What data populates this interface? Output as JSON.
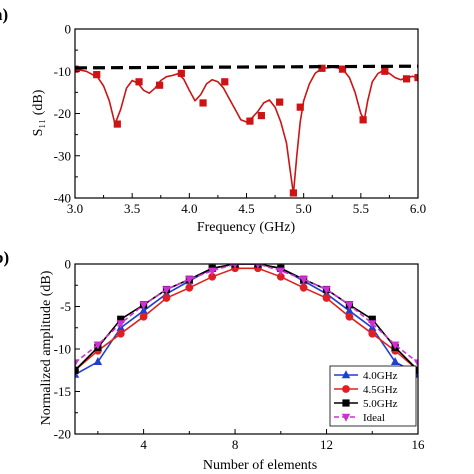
{
  "chart_data": [
    {
      "panel_label": "a)",
      "type": "line",
      "xlabel": "Frequency (GHz)",
      "ylabel": "S₁₁ (dB)",
      "xlim": [
        3.0,
        6.0
      ],
      "ylim": [
        -40,
        0
      ],
      "x_ticks": [
        "3.0",
        "3.5",
        "4.0",
        "4.5",
        "5.0",
        "5.5",
        "6.0"
      ],
      "y_ticks": [
        "0",
        "-10",
        "-20",
        "-30",
        "-40"
      ],
      "x_ticks_values": [
        3.0,
        3.5,
        4.0,
        4.5,
        5.0,
        5.5,
        6.0
      ],
      "y_ticks_values": [
        0,
        -10,
        -20,
        -30,
        -40
      ],
      "minor_x_ticks": [
        3.25,
        3.75,
        4.25,
        4.75,
        5.25,
        5.75
      ],
      "minor_y_ticks": [
        -5,
        -15,
        -25,
        -35
      ],
      "grid": false,
      "series": [
        {
          "style": "curve",
          "color": "#cc1414",
          "x": [
            3.0,
            3.1,
            3.2,
            3.25,
            3.3,
            3.35,
            3.4,
            3.45,
            3.5,
            3.55,
            3.6,
            3.65,
            3.7,
            3.75,
            3.8,
            3.85,
            3.9,
            3.95,
            4.0,
            4.05,
            4.1,
            4.15,
            4.2,
            4.25,
            4.3,
            4.35,
            4.4,
            4.45,
            4.5,
            4.55,
            4.6,
            4.65,
            4.7,
            4.75,
            4.8,
            4.85,
            4.88,
            4.91,
            4.94,
            4.97,
            5.0,
            5.05,
            5.1,
            5.15,
            5.2,
            5.25,
            5.3,
            5.35,
            5.4,
            5.45,
            5.5,
            5.53,
            5.56,
            5.6,
            5.65,
            5.7,
            5.75,
            5.8,
            5.85,
            5.9,
            5.95,
            6.0
          ],
          "y": [
            -9.5,
            -10.0,
            -11.5,
            -13.5,
            -17.0,
            -22.5,
            -19.0,
            -14.0,
            -12.2,
            -12.8,
            -14.5,
            -15.2,
            -14.0,
            -12.2,
            -11.3,
            -11.0,
            -10.6,
            -11.8,
            -14.5,
            -17.0,
            -15.5,
            -13.0,
            -12.0,
            -12.5,
            -14.0,
            -16.5,
            -19.0,
            -21.5,
            -22.0,
            -21.0,
            -19.5,
            -17.5,
            -16.8,
            -18.5,
            -22.0,
            -27.0,
            -33.0,
            -39.0,
            -30.0,
            -22.0,
            -17.0,
            -13.0,
            -10.5,
            -9.5,
            -9.2,
            -9.0,
            -9.2,
            -9.8,
            -11.5,
            -15.0,
            -20.0,
            -21.5,
            -17.0,
            -12.5,
            -10.5,
            -9.8,
            -10.5,
            -11.5,
            -12.0,
            -11.6,
            -11.2,
            -11.5
          ]
        },
        {
          "style": "markers",
          "marker": "square",
          "color": "#cc1414",
          "x": [
            3.0,
            3.19,
            3.37,
            3.56,
            3.74,
            3.93,
            4.12,
            4.31,
            4.53,
            4.63,
            4.79,
            4.91,
            4.97,
            5.16,
            5.34,
            5.52,
            5.71,
            5.9,
            6.0
          ],
          "y": [
            -9.5,
            -10.8,
            -22.5,
            -12.5,
            -13.3,
            -10.5,
            -17.5,
            -12.5,
            -21.8,
            -20.5,
            -17.3,
            -38.8,
            -18.5,
            -9.3,
            -9.5,
            -21.5,
            -10.0,
            -11.8,
            -11.5
          ]
        },
        {
          "style": "dashed",
          "color": "#000000",
          "x": [
            3.0,
            6.0
          ],
          "y": [
            -9.2,
            -8.8
          ]
        }
      ]
    },
    {
      "panel_label": "b)",
      "type": "line",
      "xlabel": "Number of elements",
      "ylabel": "Normalized amplitude (dB)",
      "xlim": [
        1,
        16
      ],
      "ylim": [
        -20,
        0
      ],
      "x_ticks": [
        "4",
        "8",
        "12",
        "16"
      ],
      "y_ticks": [
        "0",
        "-5",
        "-10",
        "-15",
        "-20"
      ],
      "x_ticks_values": [
        4,
        8,
        12,
        16
      ],
      "y_ticks_values": [
        0,
        -5,
        -10,
        -15,
        -20
      ],
      "minor_x_ticks": [
        2,
        6,
        10,
        14
      ],
      "minor_y_ticks": [
        -2.5,
        -7.5,
        -12.5,
        -17.5
      ],
      "grid": false,
      "legend_position": "bottom-right",
      "categories": [
        1,
        2,
        3,
        4,
        5,
        6,
        7,
        8,
        9,
        10,
        11,
        12,
        13,
        14,
        15,
        16
      ],
      "series": [
        {
          "name": "4.0GHz",
          "color": "#1f3fd0",
          "marker": "triangle-up",
          "dash": false,
          "values": [
            -13.0,
            -11.5,
            -7.5,
            -5.5,
            -3.5,
            -2.0,
            -0.5,
            0.0,
            0.0,
            -0.5,
            -2.0,
            -3.5,
            -5.5,
            -7.5,
            -11.5,
            -13.0
          ]
        },
        {
          "name": "4.5GHz",
          "color": "#e02020",
          "marker": "circle",
          "dash": false,
          "values": [
            -12.5,
            -10.2,
            -8.2,
            -6.2,
            -4.0,
            -2.8,
            -1.5,
            -0.5,
            -0.5,
            -1.5,
            -2.8,
            -4.0,
            -6.2,
            -8.2,
            -10.2,
            -12.5
          ]
        },
        {
          "name": "5.0GHz",
          "color": "#000000",
          "marker": "square",
          "dash": false,
          "values": [
            -12.5,
            -9.8,
            -6.5,
            -4.8,
            -3.0,
            -1.8,
            -0.5,
            0.0,
            0.0,
            -0.5,
            -1.8,
            -3.0,
            -4.8,
            -6.5,
            -9.8,
            -12.5
          ]
        },
        {
          "name": "Ideal",
          "color": "#d030d0",
          "marker": "triangle-down",
          "dash": true,
          "values": [
            -11.6,
            -9.5,
            -7.0,
            -4.8,
            -3.0,
            -1.8,
            -0.8,
            0.0,
            0.0,
            -0.8,
            -1.8,
            -3.0,
            -4.8,
            -7.0,
            -9.5,
            -11.6
          ]
        }
      ]
    }
  ]
}
